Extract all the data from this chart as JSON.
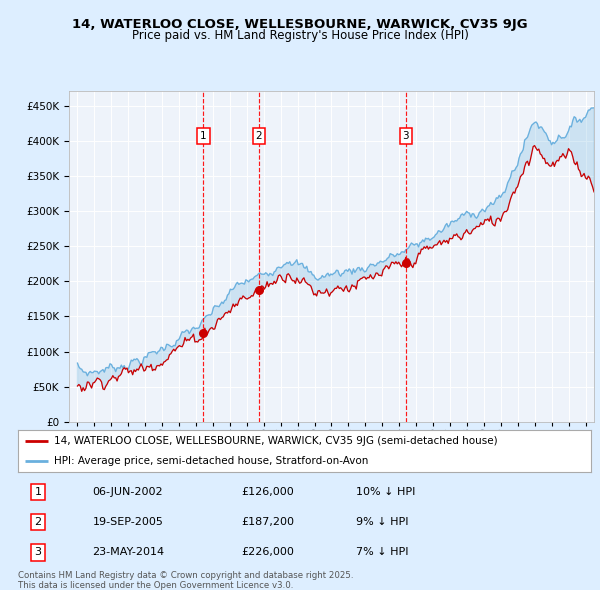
{
  "title_line1": "14, WATERLOO CLOSE, WELLESBOURNE, WARWICK, CV35 9JG",
  "title_line2": "Price paid vs. HM Land Registry's House Price Index (HPI)",
  "legend_line1": "14, WATERLOO CLOSE, WELLESBOURNE, WARWICK, CV35 9JG (semi-detached house)",
  "legend_line2": "HPI: Average price, semi-detached house, Stratford-on-Avon",
  "footer_line1": "Contains HM Land Registry data © Crown copyright and database right 2025.",
  "footer_line2": "This data is licensed under the Open Government Licence v3.0.",
  "transactions": [
    {
      "label": "1",
      "date": "06-JUN-2002",
      "price": 126000,
      "note": "10% ↓ HPI"
    },
    {
      "label": "2",
      "date": "19-SEP-2005",
      "price": 187200,
      "note": "9% ↓ HPI"
    },
    {
      "label": "3",
      "date": "23-MAY-2014",
      "price": 226000,
      "note": "7% ↓ HPI"
    }
  ],
  "transaction_dates_decimal": [
    2002.43,
    2005.72,
    2014.39
  ],
  "transaction_prices": [
    126000,
    187200,
    226000
  ],
  "hpi_color": "#6ab0de",
  "price_color": "#cc0000",
  "bg_color": "#ddeeff",
  "plot_bg": "#eef3fa",
  "ylim": [
    0,
    470000
  ],
  "yticks": [
    0,
    50000,
    100000,
    150000,
    200000,
    250000,
    300000,
    350000,
    400000,
    450000
  ],
  "xlim_start": 1994.5,
  "xlim_end": 2025.5
}
